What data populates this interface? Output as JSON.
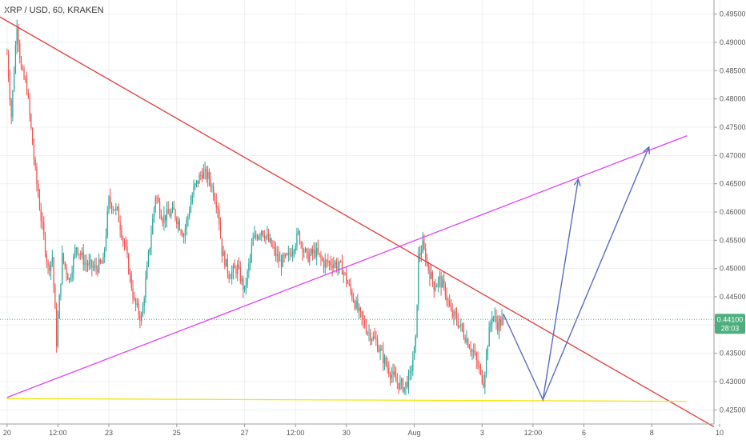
{
  "header": {
    "symbol_title": "XRP / USD, 60, KRAKEN"
  },
  "chart_data": {
    "type": "candlestick",
    "title": "XRP / USD, 60, KRAKEN",
    "y_range": [
      0.4225,
      0.4975
    ],
    "x_range_hours": [
      -5,
      500
    ],
    "y_ticks": [
      "0.49500",
      "0.49000",
      "0.48500",
      "0.48000",
      "0.47500",
      "0.47000",
      "0.46500",
      "0.46000",
      "0.45500",
      "0.45000",
      "0.44500",
      "0.44000",
      "0.43500",
      "0.43000",
      "0.42500"
    ],
    "x_ticks": [
      {
        "label": "20",
        "h": 0
      },
      {
        "label": "12:00",
        "h": 36
      },
      {
        "label": "23",
        "h": 72
      },
      {
        "label": "25",
        "h": 120
      },
      {
        "label": "27",
        "h": 168
      },
      {
        "label": "12:00",
        "h": 204
      },
      {
        "label": "30",
        "h": 240
      },
      {
        "label": "Aug",
        "h": 288
      },
      {
        "label": "3",
        "h": 336
      },
      {
        "label": "12:00",
        "h": 372
      },
      {
        "label": "6",
        "h": 408
      },
      {
        "label": "8",
        "h": 456
      },
      {
        "label": "10",
        "h": 504
      }
    ],
    "current_price": {
      "value": "0.44100",
      "countdown": "28:03",
      "price": 0.441
    },
    "price_anchors": [
      [
        0,
        0.488
      ],
      [
        3,
        0.477
      ],
      [
        7,
        0.4935
      ],
      [
        10,
        0.485
      ],
      [
        14,
        0.482
      ],
      [
        20,
        0.467
      ],
      [
        24,
        0.459
      ],
      [
        29,
        0.45
      ],
      [
        32,
        0.452
      ],
      [
        35,
        0.437
      ],
      [
        39,
        0.452
      ],
      [
        44,
        0.448
      ],
      [
        49,
        0.454
      ],
      [
        55,
        0.451
      ],
      [
        62,
        0.45
      ],
      [
        68,
        0.451
      ],
      [
        72,
        0.462
      ],
      [
        78,
        0.46
      ],
      [
        84,
        0.453
      ],
      [
        90,
        0.444
      ],
      [
        95,
        0.441
      ],
      [
        100,
        0.452
      ],
      [
        105,
        0.463
      ],
      [
        110,
        0.459
      ],
      [
        118,
        0.46
      ],
      [
        125,
        0.456
      ],
      [
        132,
        0.464
      ],
      [
        138,
        0.467
      ],
      [
        143,
        0.466
      ],
      [
        149,
        0.461
      ],
      [
        152,
        0.453
      ],
      [
        157,
        0.449
      ],
      [
        163,
        0.45
      ],
      [
        168,
        0.446
      ],
      [
        174,
        0.455
      ],
      [
        180,
        0.457
      ],
      [
        187,
        0.454
      ],
      [
        193,
        0.451
      ],
      [
        199,
        0.452
      ],
      [
        206,
        0.456
      ],
      [
        212,
        0.452
      ],
      [
        218,
        0.453
      ],
      [
        224,
        0.451
      ],
      [
        231,
        0.451
      ],
      [
        237,
        0.45
      ],
      [
        243,
        0.446
      ],
      [
        249,
        0.442
      ],
      [
        255,
        0.439
      ],
      [
        261,
        0.437
      ],
      [
        268,
        0.433
      ],
      [
        275,
        0.43
      ],
      [
        281,
        0.429
      ],
      [
        285,
        0.431
      ],
      [
        289,
        0.437
      ],
      [
        291,
        0.452
      ],
      [
        294,
        0.454
      ],
      [
        298,
        0.45
      ],
      [
        302,
        0.447
      ],
      [
        306,
        0.448
      ],
      [
        310,
        0.446
      ],
      [
        314,
        0.442
      ],
      [
        318,
        0.441
      ],
      [
        322,
        0.439
      ],
      [
        326,
        0.437
      ],
      [
        330,
        0.435
      ],
      [
        334,
        0.432
      ],
      [
        337,
        0.43
      ],
      [
        340,
        0.437
      ],
      [
        343,
        0.442
      ],
      [
        347,
        0.44
      ],
      [
        351,
        0.441
      ]
    ],
    "annotations": {
      "red_trendline": {
        "color": "#e53935",
        "points": [
          [
            -5,
            0.4945
          ],
          [
            500,
            0.422
          ]
        ]
      },
      "magenta_trendline": {
        "color": "#e040fb",
        "points": [
          [
            0,
            0.4272
          ],
          [
            481,
            0.4735
          ]
        ]
      },
      "yellow_support": {
        "color": "#f5e50c",
        "points": [
          [
            0,
            0.427
          ],
          [
            481,
            0.4265
          ]
        ]
      },
      "projection_arrows": {
        "color": "#5c6bc0",
        "paths": [
          [
            [
              351,
              0.442
            ],
            [
              379,
              0.4268
            ],
            [
              404,
              0.4658
            ]
          ],
          [
            [
              379,
              0.4268
            ],
            [
              454,
              0.4715
            ]
          ]
        ]
      }
    },
    "colors": {
      "up": "#26a69a",
      "down": "#ef5350",
      "grid": "#eef0f3",
      "price_tag": "#4caf7d"
    }
  }
}
